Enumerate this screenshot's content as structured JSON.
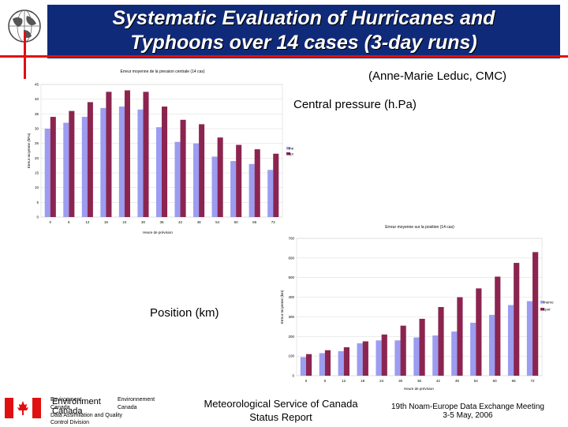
{
  "header": {
    "title_line1": "Systematic Evaluation of Hurricanes and",
    "title_line2": "Typhoons over  14 cases (3-day runs)",
    "author": "(Anne-Marie Leduc, CMC)"
  },
  "labels": {
    "pressure": "Central pressure (h.Pa)",
    "position": "Position (km)"
  },
  "footer": {
    "env_en": "Environment",
    "env_fr": "Environnement",
    "canada_en": "Canada",
    "canada_fr": "Canada",
    "env_big": "Environment",
    "canada_big": "Canada",
    "division": "Data Assimilation and Quality",
    "division2": "Control Division",
    "center_line1": "Meteorological Service of Canada",
    "center_line2": "Status Report",
    "right_line1": "19th Noam-Europe Data Exchange Meeting",
    "right_line2": "3-5 May, 2006"
  },
  "colors": {
    "banner": "#102a7a",
    "accent_red": "#e01010",
    "series_memo": "#9c9cf0",
    "series_cpor": "#8b2550"
  },
  "chart_data": [
    {
      "type": "bar",
      "title": "Erreur moyenne de la pression centrale (14 cas)",
      "xlabel": "Heure de prévision",
      "ylabel": "Erreur moyenne (hPa)",
      "categories": [
        "0",
        "6",
        "12",
        "18",
        "24",
        "30",
        "36",
        "42",
        "48",
        "54",
        "60",
        "66",
        "72"
      ],
      "ylim": [
        0,
        45
      ],
      "yticks": [
        "0",
        "5",
        "10",
        "15",
        "20",
        "25",
        "30",
        "35",
        "40",
        "45"
      ],
      "legend_position": "right",
      "grid": true,
      "series": [
        {
          "name": "memo",
          "values": [
            30,
            32,
            34,
            37,
            37.5,
            36.5,
            30.5,
            25.5,
            25,
            20.5,
            19,
            18,
            16
          ]
        },
        {
          "name": "cpor",
          "values": [
            34,
            36,
            39,
            42.5,
            43,
            42.5,
            37.5,
            33,
            31.5,
            27,
            24.5,
            23,
            21.5
          ]
        }
      ]
    },
    {
      "type": "bar",
      "title": "Erreur moyenne sur la position (14 cas)",
      "xlabel": "Heure de prévision",
      "ylabel": "Erreur moyenne (km)",
      "categories": [
        "0",
        "6",
        "12",
        "18",
        "24",
        "30",
        "36",
        "42",
        "48",
        "54",
        "60",
        "66",
        "72"
      ],
      "ylim": [
        0,
        700
      ],
      "yticks": [
        "0",
        "100",
        "200",
        "300",
        "400",
        "500",
        "600",
        "700"
      ],
      "legend_position": "right",
      "grid": true,
      "series": [
        {
          "name": "memo",
          "values": [
            95,
            115,
            125,
            165,
            180,
            180,
            195,
            205,
            225,
            270,
            310,
            360,
            380
          ]
        },
        {
          "name": "cpor",
          "values": [
            110,
            130,
            145,
            175,
            210,
            255,
            290,
            350,
            400,
            445,
            505,
            575,
            630
          ]
        }
      ]
    }
  ]
}
